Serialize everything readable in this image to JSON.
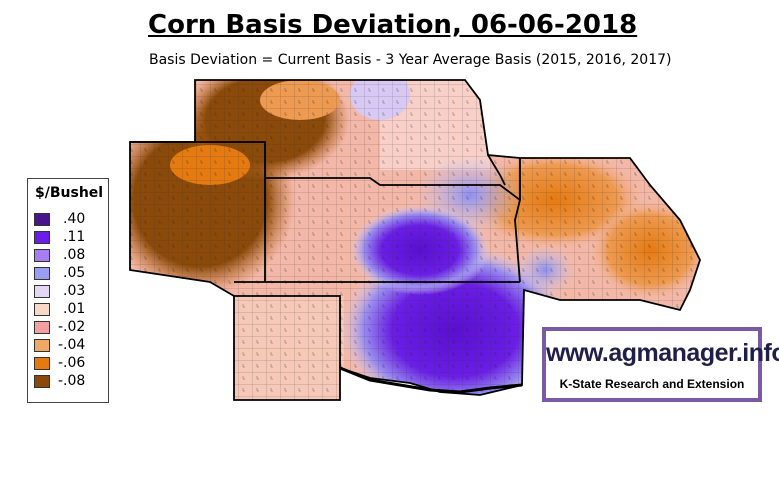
{
  "title": "Corn Basis Deviation, 06-06-2018",
  "subtitle": "Basis Deviation = Current Basis - 3 Year Average Basis (2015, 2016, 2017)",
  "legend": {
    "title": "$/Bushel",
    "items": [
      {
        "label": ".40",
        "color": "#4a148c"
      },
      {
        "label": ".11",
        "color": "#6a1ee6"
      },
      {
        "label": ".08",
        "color": "#a77ef0"
      },
      {
        "label": ".05",
        "color": "#9a9ef2"
      },
      {
        "label": ".03",
        "color": "#e4d6f4"
      },
      {
        "label": ".01",
        "color": "#f8d8c6"
      },
      {
        "label": "-.02",
        "color": "#f2a0a0"
      },
      {
        "label": "-.04",
        "color": "#f0a868"
      },
      {
        "label": "-.06",
        "color": "#e57a10"
      },
      {
        "label": "-.08",
        "color": "#8b4a0a"
      }
    ]
  },
  "logo": {
    "url_text": "www.agmanager.info",
    "org_text": "K-State Research and Extension"
  }
}
